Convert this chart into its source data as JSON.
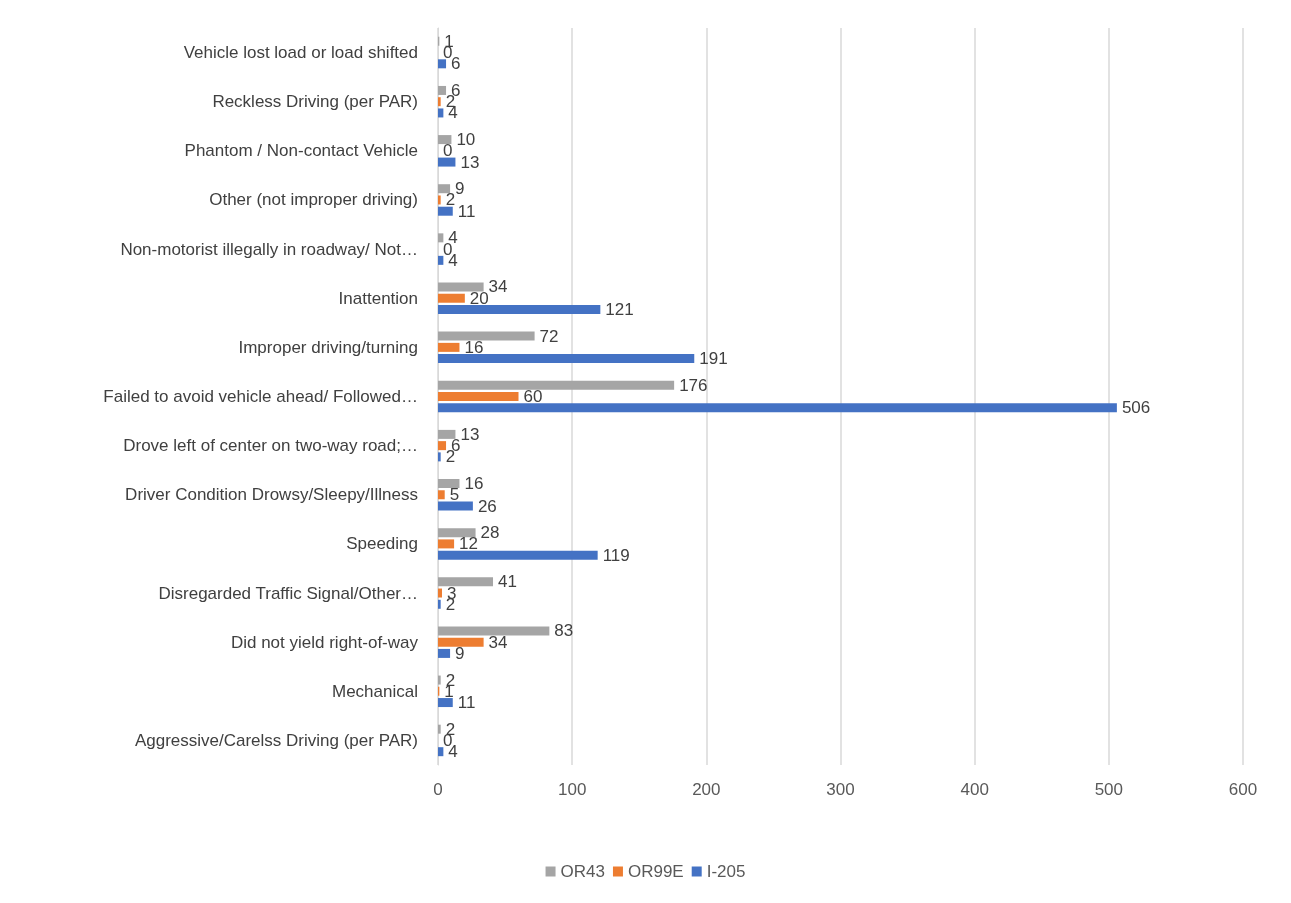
{
  "chart_data": {
    "type": "bar",
    "orientation": "horizontal",
    "categories": [
      "Vehicle lost load or load shifted",
      "Reckless Driving (per PAR)",
      "Phantom / Non-contact Vehicle",
      "Other (not improper driving)",
      "Non-motorist illegally in roadway/ Not…",
      "Inattention",
      "Improper driving/turning",
      "Failed to avoid vehicle ahead/ Followed…",
      "Drove left of center on two-way road;…",
      "Driver Condition Drowsy/Sleepy/Illness",
      "Speeding",
      "Disregarded Traffic Signal/Other…",
      "Did not yield right-of-way",
      "Mechanical",
      "Aggressive/Carelss Driving (per PAR)"
    ],
    "series": [
      {
        "name": "OR43",
        "color": "#a5a5a5",
        "values": [
          1,
          6,
          10,
          9,
          4,
          34,
          72,
          176,
          13,
          16,
          28,
          41,
          83,
          2,
          2
        ]
      },
      {
        "name": "OR99E",
        "color": "#ed7d31",
        "values": [
          0,
          2,
          0,
          2,
          0,
          20,
          16,
          60,
          6,
          5,
          12,
          3,
          34,
          1,
          0
        ]
      },
      {
        "name": "I-205",
        "color": "#4472c4",
        "values": [
          6,
          4,
          13,
          11,
          4,
          121,
          191,
          506,
          2,
          26,
          119,
          2,
          9,
          11,
          4
        ]
      }
    ],
    "xlim": [
      0,
      600
    ],
    "xticks": [
      0,
      100,
      200,
      300,
      400,
      500,
      600
    ],
    "grid": "x",
    "legend": "bottom",
    "data_labels": true
  }
}
